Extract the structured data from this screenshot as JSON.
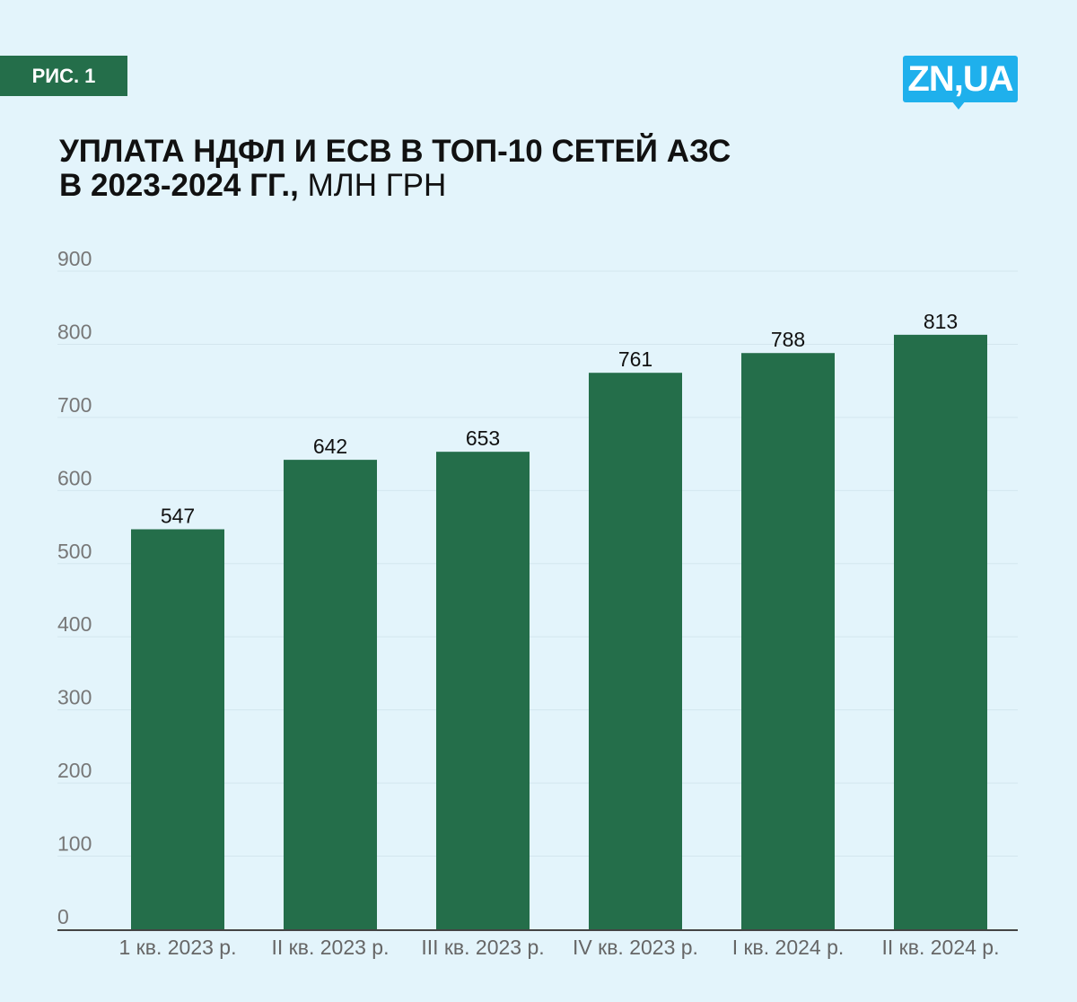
{
  "badge": "РИС. 1",
  "logo": "ZN,UA",
  "title_bold_line1": "УПЛАТА НДФЛ И ЕСВ В ТОП-10 СЕТЕЙ АЗС",
  "title_bold_line2": "В 2023-2024 ГГ.,",
  "title_unit": " МЛН ГРН",
  "colors": {
    "background": "#e3f4fb",
    "bar": "#246e4a",
    "logo": "#1fb0ec"
  },
  "chart_data": {
    "type": "bar",
    "title": "УПЛАТА НДФЛ И ЕСВ В ТОП-10 СЕТЕЙ АЗС В 2023-2024 ГГ., МЛН ГРН",
    "categories": [
      "1 кв. 2023 р.",
      "II кв. 2023 р.",
      "III кв. 2023 р.",
      "IV кв. 2023 р.",
      "I кв. 2024 р.",
      "II кв. 2024 р."
    ],
    "values": [
      547,
      642,
      653,
      761,
      788,
      813
    ],
    "ylim": [
      0,
      900
    ],
    "yticks": [
      0,
      100,
      200,
      300,
      400,
      500,
      600,
      700,
      800,
      900
    ],
    "grid": true,
    "xlabel": "",
    "ylabel": ""
  }
}
